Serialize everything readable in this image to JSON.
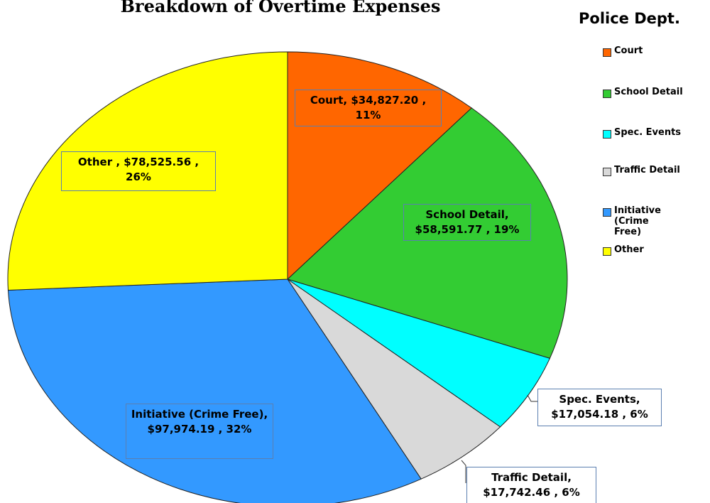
{
  "chart_data": {
    "type": "pie",
    "title": "Breakdown of Overtime Expenses",
    "legend_title": "Police Dept.",
    "categories": [
      "Court",
      "School Detail",
      "Spec. Events",
      "Traffic Detail",
      "Initiative (Crime Free)",
      "Other"
    ],
    "values": [
      34827.2,
      58591.77,
      17054.18,
      17742.46,
      97974.19,
      78525.56
    ],
    "value_labels": [
      "Court, $34,827.20 , 11%",
      "School Detail, $58,591.77 , 19%",
      "Spec. Events, $17,054.18 , 6%",
      "Traffic Detail, $17,742.46 , 6%",
      "Initiative (Crime Free), $97,974.19 , 32%",
      "Other , $78,525.56 , 26%"
    ],
    "colors": [
      "#ff6600",
      "#33cc33",
      "#00ffff",
      "#d9d9d9",
      "#3399ff",
      "#ffff00"
    ],
    "legend": "right"
  }
}
